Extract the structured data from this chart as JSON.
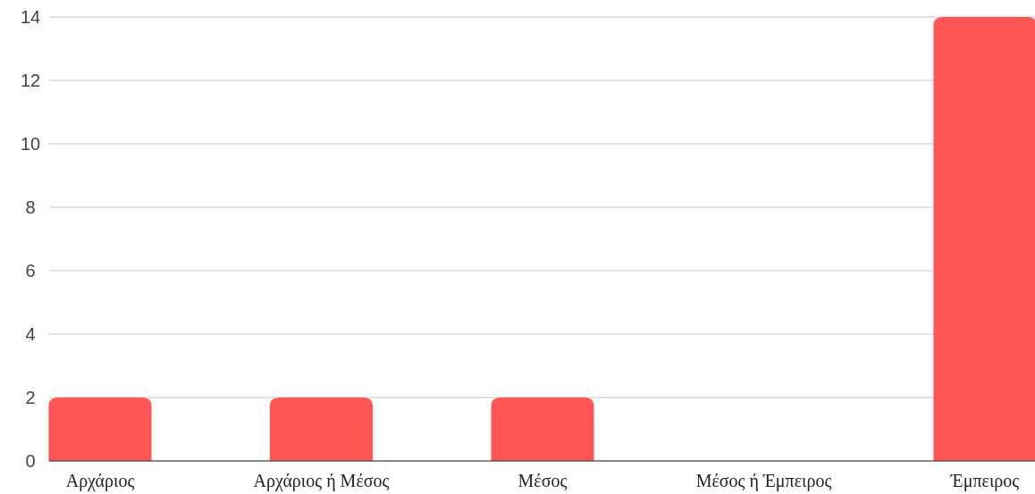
{
  "chart_data": {
    "type": "bar",
    "categories": [
      "Αρχάριος",
      "Αρχάριος ή Μέσος",
      "Μέσος",
      "Μέσος ή Έμπειρος",
      "Έμπειρος"
    ],
    "values": [
      2,
      2,
      2,
      0,
      14
    ],
    "color": "#ff5555",
    "ylim": [
      0,
      14
    ],
    "yticks": [
      0,
      2,
      4,
      6,
      8,
      10,
      12,
      14
    ],
    "grid": "y"
  }
}
